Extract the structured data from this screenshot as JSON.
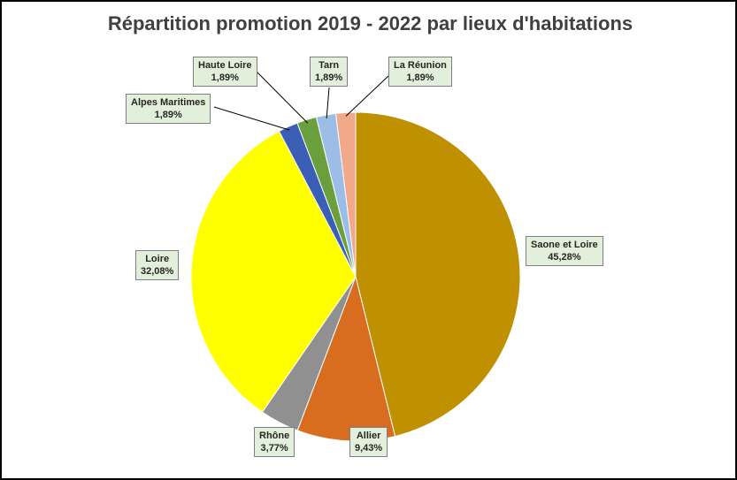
{
  "chart_data": {
    "type": "pie",
    "title": "Répartition promotion 2019 - 2022 par lieux d'habitations",
    "slices": [
      {
        "name": "Saone et Loire",
        "value": 45.28,
        "label": "45,28%",
        "color": "#bf9000"
      },
      {
        "name": "Allier",
        "value": 9.43,
        "label": "9,43%",
        "color": "#d86d1f"
      },
      {
        "name": "Rhône",
        "value": 3.77,
        "label": "3,77%",
        "color": "#909090"
      },
      {
        "name": "Loire",
        "value": 32.08,
        "label": "32,08%",
        "color": "#ffff00"
      },
      {
        "name": "Alpes Maritimes",
        "value": 1.89,
        "label": "1,89%",
        "color": "#3a5fb5"
      },
      {
        "name": "Haute Loire",
        "value": 1.89,
        "label": "1,89%",
        "color": "#6a9f3e"
      },
      {
        "name": "Tarn",
        "value": 1.89,
        "label": "1,89%",
        "color": "#9cbde6"
      },
      {
        "name": "La Réunion",
        "value": 1.89,
        "label": "1,89%",
        "color": "#f2a98a"
      }
    ],
    "legend": "none"
  }
}
